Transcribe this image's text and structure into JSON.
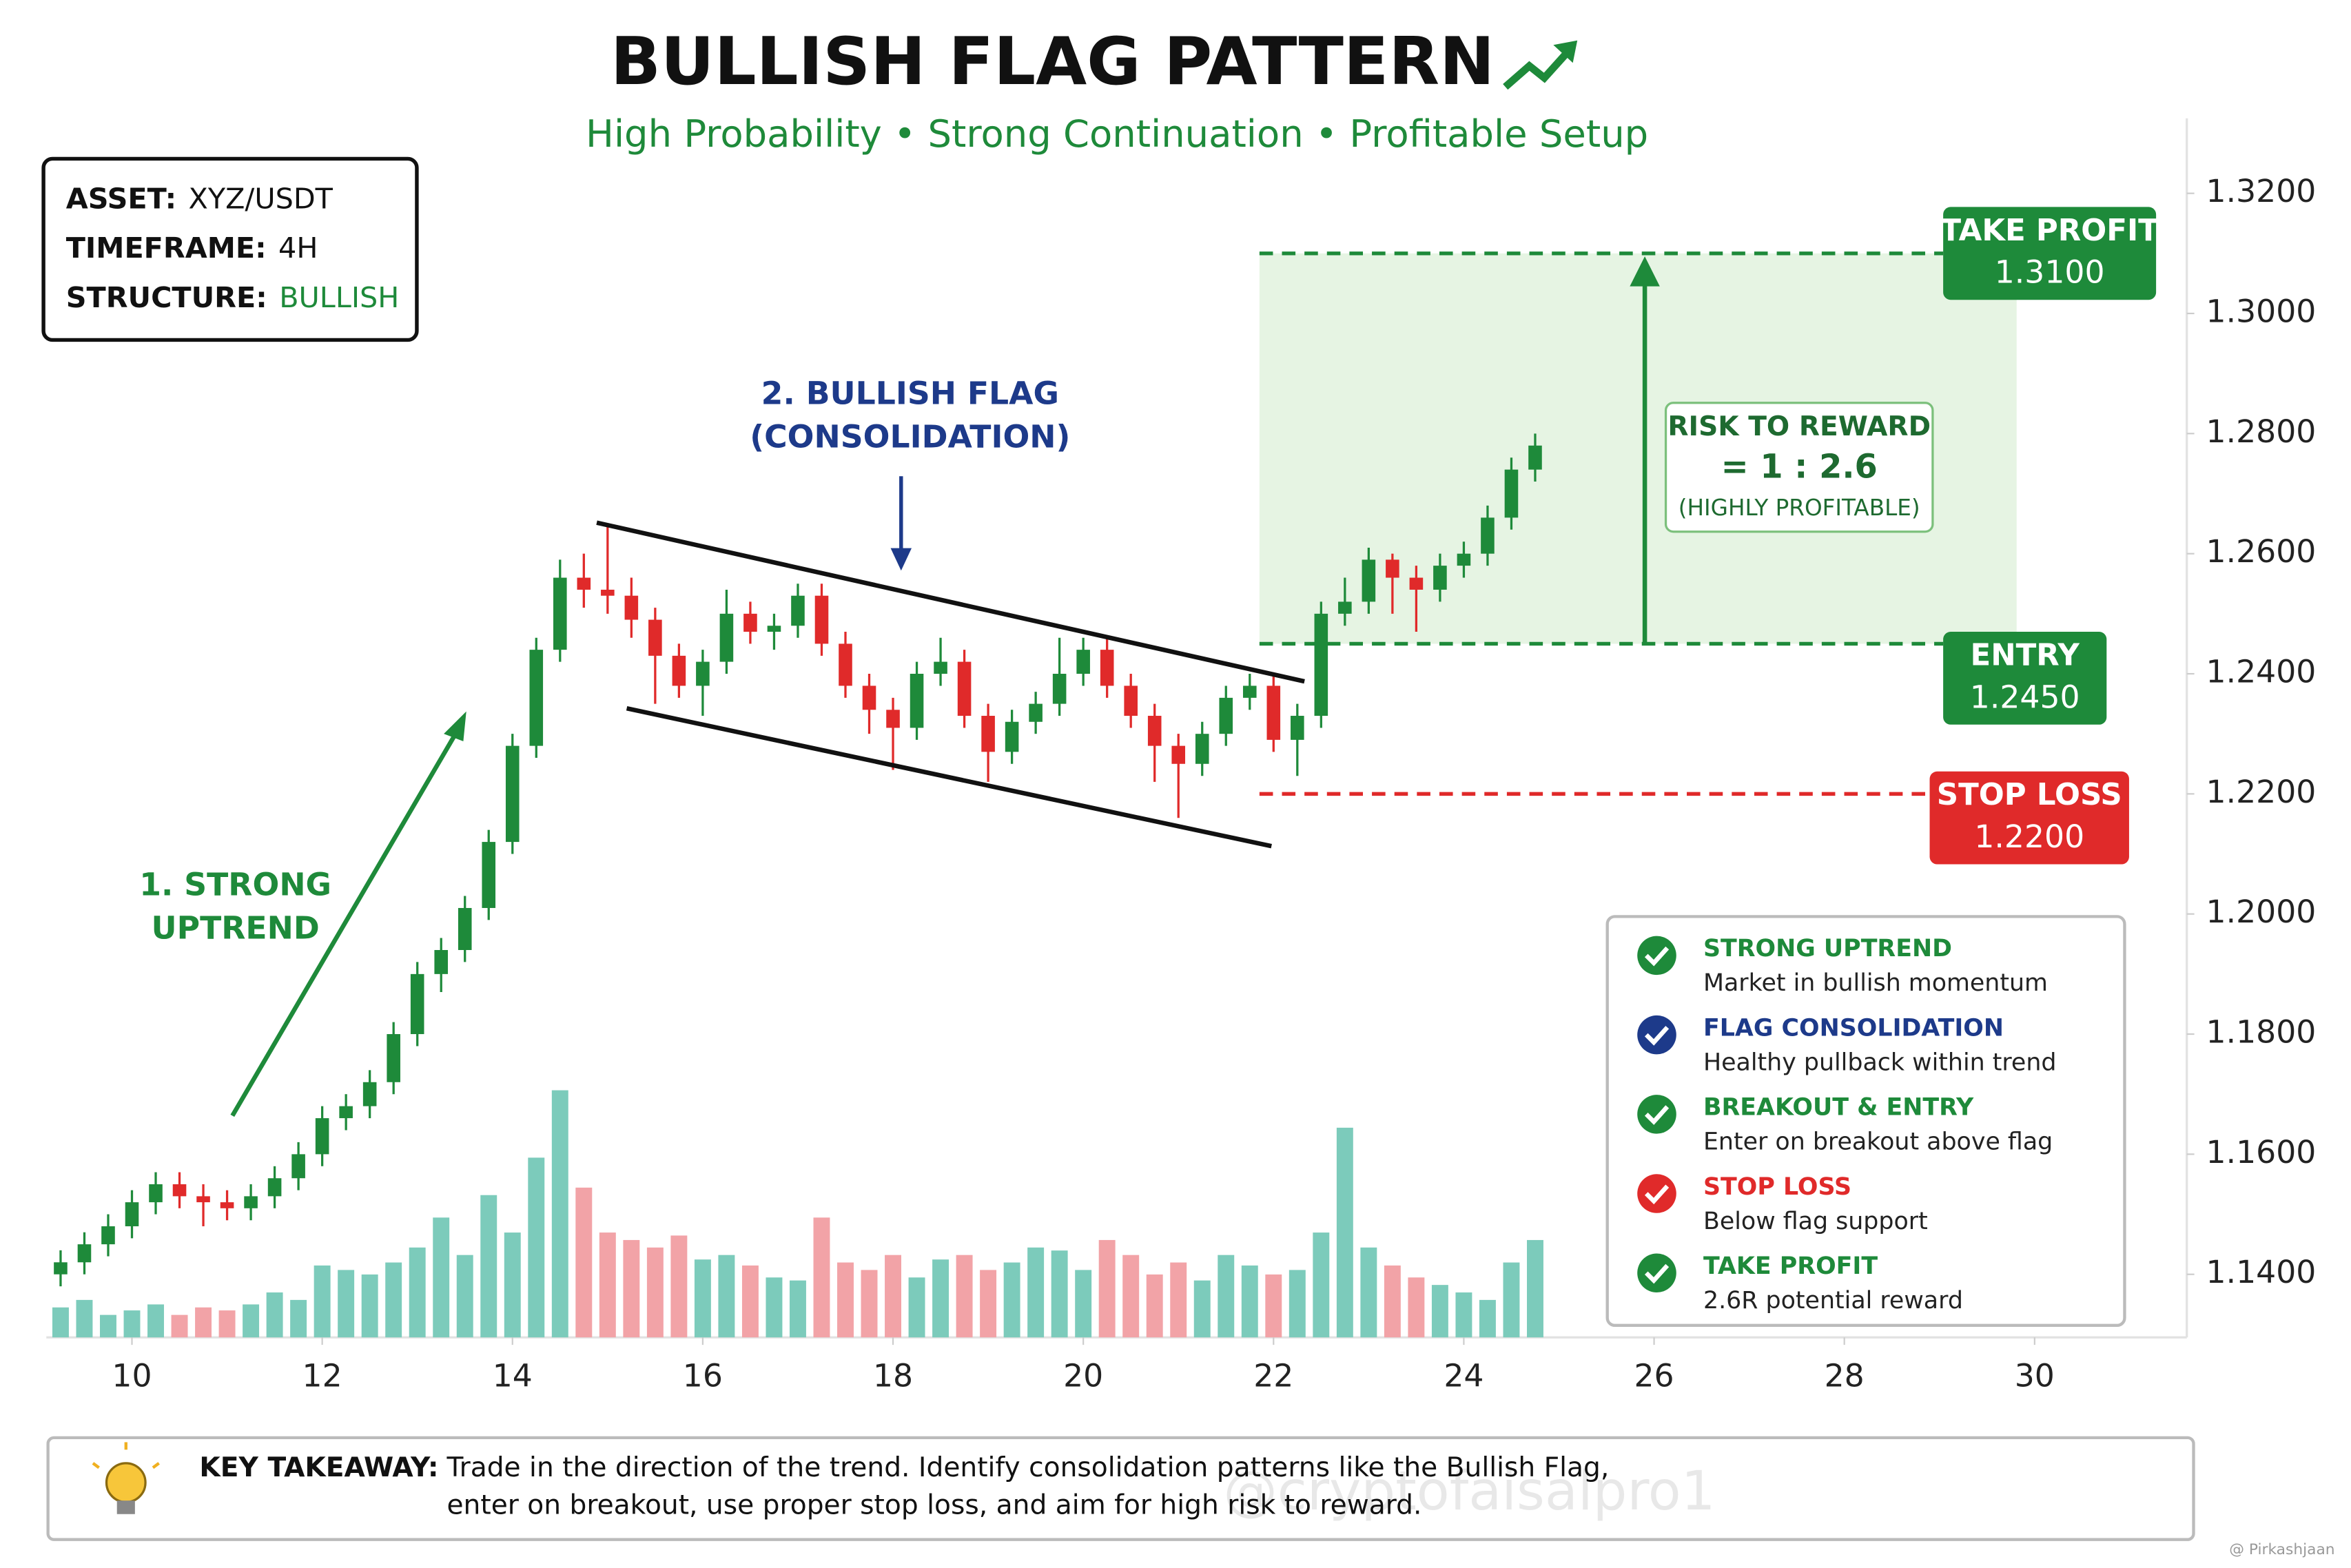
{
  "chart_data": {
    "type": "candlestick",
    "title": "BULLISH FLAG PATTERN",
    "subtitle": "High Probability • Strong Continuation • Profitable Setup",
    "info": [
      {
        "label": "ASSET:",
        "value": "XYZ/USDT"
      },
      {
        "label": "TIMEFRAME:",
        "value": "4H"
      },
      {
        "label": "STRUCTURE:",
        "value": "BULLISH"
      }
    ],
    "annotations": {
      "uptrend": [
        "1. STRONG",
        "UPTREND"
      ],
      "flag": [
        "2. BULLISH FLAG",
        "(CONSOLIDATION)"
      ],
      "risk_reward": [
        "RISK TO REWARD",
        "= 1 : 2.6",
        "(HIGHLY PROFITABLE)"
      ]
    },
    "levels": [
      {
        "name": "TAKE PROFIT",
        "value": 1.31,
        "label": "1.3100",
        "color": "#1e8a3a"
      },
      {
        "name": "ENTRY",
        "value": 1.245,
        "label": "1.2450",
        "color": "#1e8a3a"
      },
      {
        "name": "STOP LOSS",
        "value": 1.22,
        "label": "1.2200",
        "color": "#e02a2a"
      }
    ],
    "checklist": [
      {
        "title": "STRONG UPTREND",
        "text": "Market in bullish momentum",
        "color": "#1e8a3a"
      },
      {
        "title": "FLAG CONSOLIDATION",
        "text": "Healthy pullback within trend",
        "color": "#1d3a8a"
      },
      {
        "title": "BREAKOUT & ENTRY",
        "text": "Enter on breakout above flag",
        "color": "#1e8a3a"
      },
      {
        "title": "STOP LOSS",
        "text": "Below flag support",
        "color": "#e02a2a"
      },
      {
        "title": "TAKE PROFIT",
        "text": "2.6R potential reward",
        "color": "#1e8a3a"
      }
    ],
    "takeaway": {
      "label": "KEY TAKEAWAY:",
      "lines": [
        "Trade in the direction of the trend. Identify consolidation patterns like the Bullish Flag,",
        "enter on breakout, use proper stop loss, and aim for high risk to reward."
      ]
    },
    "watermarks": [
      "@cryptofaisalpro1",
      "@ Pirkashjaan"
    ],
    "up_color": "#1e8a3a",
    "down_color": "#e02a2a",
    "volume_up_color": "#7ccbbb",
    "volume_down_color": "#f2a3a7",
    "x": [
      9.25,
      9.5,
      9.75,
      10,
      10.25,
      10.5,
      10.75,
      11,
      11.25,
      11.5,
      11.75,
      12,
      12.25,
      12.5,
      12.75,
      13,
      13.25,
      13.5,
      13.75,
      14,
      14.25,
      14.5,
      14.75,
      15,
      15.25,
      15.5,
      15.75,
      16,
      16.25,
      16.5,
      16.75,
      17,
      17.25,
      17.5,
      17.75,
      18,
      18.25,
      18.5,
      18.75,
      19,
      19.25,
      19.5,
      19.75,
      20,
      20.25,
      20.5,
      20.75,
      21,
      21.25,
      21.5,
      21.75,
      22,
      22.25,
      22.5,
      22.75,
      23,
      23.25,
      23.5,
      23.75,
      24,
      24.25,
      24.5,
      24.75
    ],
    "open": [
      1.14,
      1.142,
      1.145,
      1.148,
      1.152,
      1.155,
      1.153,
      1.152,
      1.151,
      1.153,
      1.156,
      1.16,
      1.166,
      1.168,
      1.172,
      1.18,
      1.19,
      1.194,
      1.201,
      1.212,
      1.228,
      1.244,
      1.256,
      1.254,
      1.253,
      1.249,
      1.243,
      1.238,
      1.242,
      1.25,
      1.247,
      1.248,
      1.253,
      1.245,
      1.238,
      1.234,
      1.231,
      1.24,
      1.242,
      1.233,
      1.227,
      1.232,
      1.235,
      1.24,
      1.244,
      1.238,
      1.233,
      1.228,
      1.225,
      1.23,
      1.236,
      1.238,
      1.229,
      1.233,
      1.25,
      1.252,
      1.259,
      1.256,
      1.254,
      1.258,
      1.26,
      1.266,
      1.274
    ],
    "high": [
      1.144,
      1.147,
      1.15,
      1.154,
      1.157,
      1.157,
      1.155,
      1.154,
      1.155,
      1.158,
      1.162,
      1.168,
      1.17,
      1.174,
      1.182,
      1.192,
      1.196,
      1.203,
      1.214,
      1.23,
      1.246,
      1.259,
      1.26,
      1.265,
      1.256,
      1.251,
      1.245,
      1.244,
      1.254,
      1.252,
      1.25,
      1.255,
      1.255,
      1.247,
      1.24,
      1.236,
      1.242,
      1.246,
      1.244,
      1.235,
      1.234,
      1.237,
      1.246,
      1.246,
      1.246,
      1.24,
      1.235,
      1.23,
      1.232,
      1.238,
      1.24,
      1.24,
      1.235,
      1.252,
      1.256,
      1.261,
      1.26,
      1.258,
      1.26,
      1.262,
      1.268,
      1.276,
      1.28
    ],
    "low": [
      1.138,
      1.14,
      1.143,
      1.146,
      1.15,
      1.151,
      1.148,
      1.149,
      1.149,
      1.151,
      1.154,
      1.158,
      1.164,
      1.166,
      1.17,
      1.178,
      1.187,
      1.192,
      1.199,
      1.21,
      1.226,
      1.242,
      1.251,
      1.25,
      1.246,
      1.235,
      1.236,
      1.233,
      1.24,
      1.245,
      1.244,
      1.246,
      1.243,
      1.236,
      1.23,
      1.224,
      1.229,
      1.238,
      1.231,
      1.222,
      1.225,
      1.23,
      1.233,
      1.238,
      1.236,
      1.231,
      1.222,
      1.216,
      1.223,
      1.228,
      1.234,
      1.227,
      1.223,
      1.231,
      1.248,
      1.25,
      1.25,
      1.247,
      1.252,
      1.256,
      1.258,
      1.264,
      1.272
    ],
    "close": [
      1.142,
      1.145,
      1.148,
      1.152,
      1.155,
      1.153,
      1.152,
      1.151,
      1.153,
      1.156,
      1.16,
      1.166,
      1.168,
      1.172,
      1.18,
      1.19,
      1.194,
      1.201,
      1.212,
      1.228,
      1.244,
      1.256,
      1.254,
      1.253,
      1.249,
      1.243,
      1.238,
      1.242,
      1.25,
      1.247,
      1.248,
      1.253,
      1.245,
      1.238,
      1.234,
      1.231,
      1.24,
      1.242,
      1.233,
      1.227,
      1.232,
      1.235,
      1.24,
      1.244,
      1.238,
      1.233,
      1.228,
      1.225,
      1.23,
      1.236,
      1.238,
      1.229,
      1.233,
      1.25,
      1.252,
      1.259,
      1.256,
      1.254,
      1.258,
      1.26,
      1.266,
      1.274,
      1.278
    ],
    "volume": [
      20,
      25,
      15,
      18,
      22,
      15,
      20,
      18,
      22,
      30,
      25,
      48,
      45,
      42,
      50,
      60,
      80,
      55,
      95,
      70,
      120,
      165,
      100,
      70,
      65,
      60,
      68,
      52,
      55,
      48,
      40,
      38,
      80,
      50,
      45,
      55,
      40,
      52,
      55,
      45,
      50,
      60,
      58,
      45,
      65,
      55,
      42,
      50,
      38,
      55,
      48,
      42,
      45,
      70,
      140,
      60,
      48,
      40,
      35,
      30,
      25,
      50,
      65
    ],
    "xlim": [
      9.1,
      31.6
    ],
    "xticks": [
      10,
      12,
      14,
      16,
      18,
      20,
      22,
      24,
      26,
      28,
      30
    ],
    "ylim": [
      1.13,
      1.33
    ],
    "yticks": [
      {
        "value": 1.14,
        "label": "1.1400"
      },
      {
        "value": 1.16,
        "label": "1.1600"
      },
      {
        "value": 1.18,
        "label": "1.1800"
      },
      {
        "value": 1.2,
        "label": "1.2000"
      },
      {
        "value": 1.22,
        "label": "1.2200"
      },
      {
        "value": 1.24,
        "label": "1.2400"
      },
      {
        "value": 1.26,
        "label": "1.2600"
      },
      {
        "value": 1.28,
        "label": "1.2800"
      },
      {
        "value": 1.3,
        "label": "1.3000"
      },
      {
        "value": 1.32,
        "label": "1.3200"
      }
    ],
    "grid": false
  }
}
